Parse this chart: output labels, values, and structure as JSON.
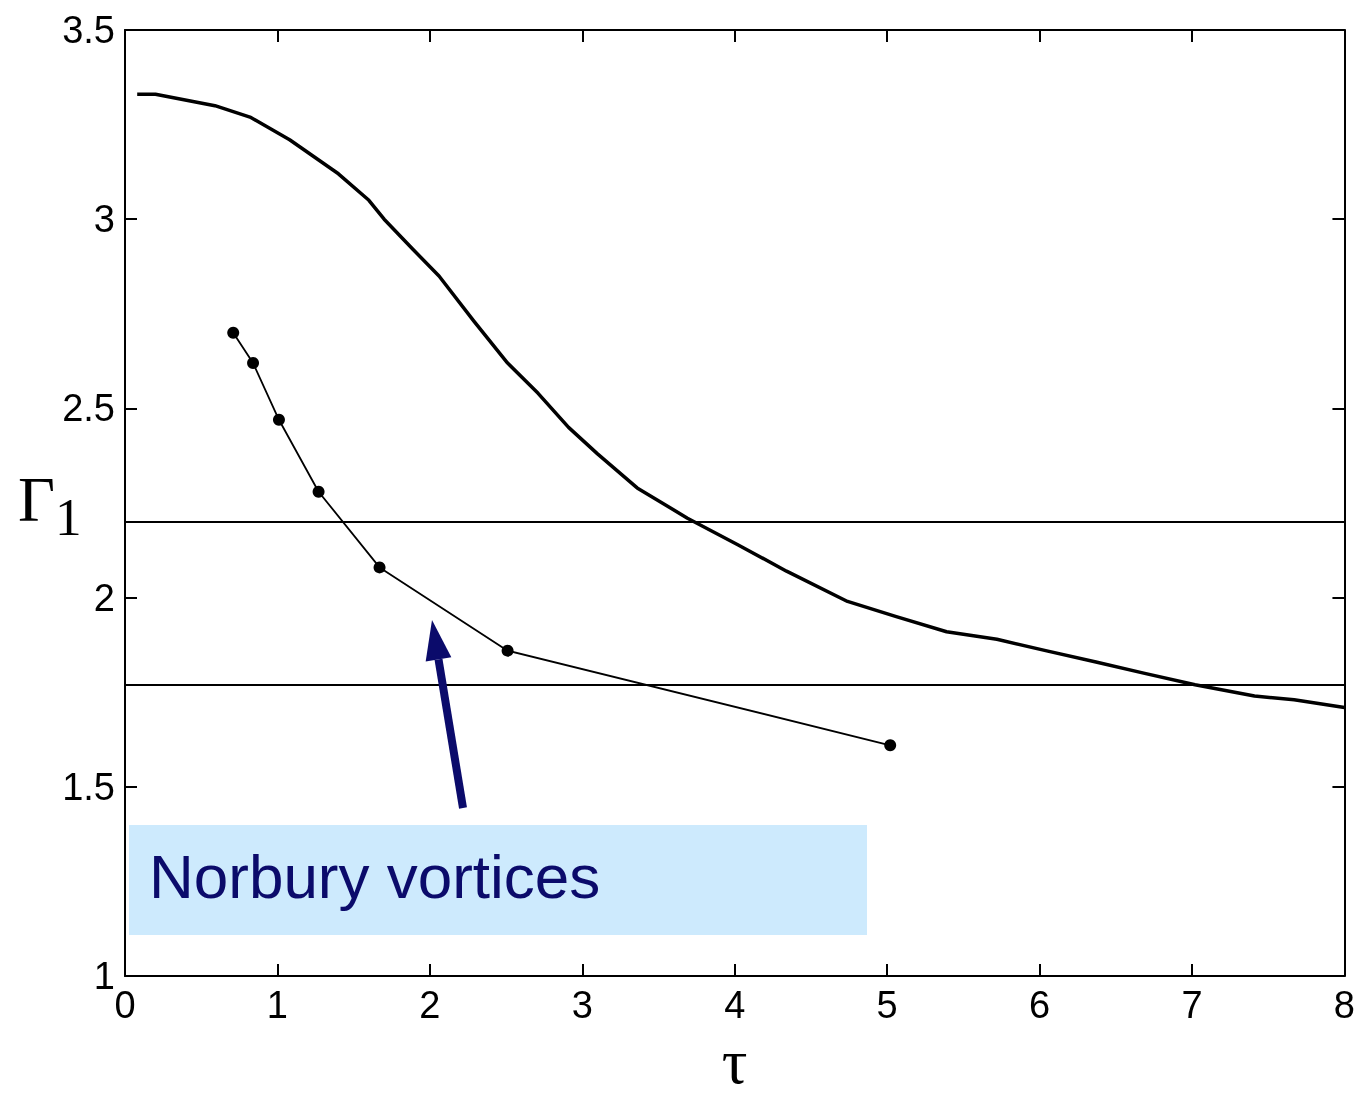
{
  "chart_data": {
    "type": "line",
    "xlabel": "τ",
    "ylabel": "Γ$_{1}$",
    "xlim": [
      0,
      8
    ],
    "xticks": [
      0,
      1,
      2,
      3,
      4,
      5,
      6,
      7,
      8
    ],
    "ylim": [
      1,
      3.5
    ],
    "yticks": [
      1,
      1.5,
      2,
      2.5,
      3,
      3.5
    ],
    "grid": false,
    "series": [
      {
        "color": "#000000",
        "marker": "none",
        "x": [
          0.08,
          0.2,
          0.59,
          0.82,
          1.08,
          1.4,
          1.6,
          1.7,
          1.89,
          2.06,
          2.29,
          2.51,
          2.71,
          2.91,
          3.1,
          3.36,
          3.69,
          4.02,
          4.34,
          4.74,
          5.06,
          5.39,
          5.72,
          6.04,
          6.37,
          6.69,
          7.02,
          7.41,
          7.67,
          8.0
        ],
        "values": [
          3.33,
          3.33,
          3.3,
          3.27,
          3.21,
          3.12,
          3.05,
          3.0,
          2.92,
          2.85,
          2.73,
          2.62,
          2.54,
          2.45,
          2.38,
          2.29,
          2.21,
          2.14,
          2.07,
          1.99,
          1.95,
          1.91,
          1.89,
          1.86,
          1.83,
          1.8,
          1.77,
          1.74,
          1.73,
          1.71
        ]
      },
      {
        "color": "#000000",
        "marker": "circle",
        "x": [
          0.71,
          0.84,
          1.01,
          1.27,
          1.67,
          2.51,
          5.02
        ],
        "values": [
          2.7,
          2.62,
          2.47,
          2.28,
          2.08,
          1.86,
          1.61
        ]
      }
    ],
    "ref_lines": [
      {
        "axis": "y",
        "value": 2.2,
        "color": "#000000"
      },
      {
        "axis": "y",
        "value": 1.77,
        "color": "#000000"
      }
    ],
    "annotations": [
      "Norbury vortices"
    ]
  }
}
